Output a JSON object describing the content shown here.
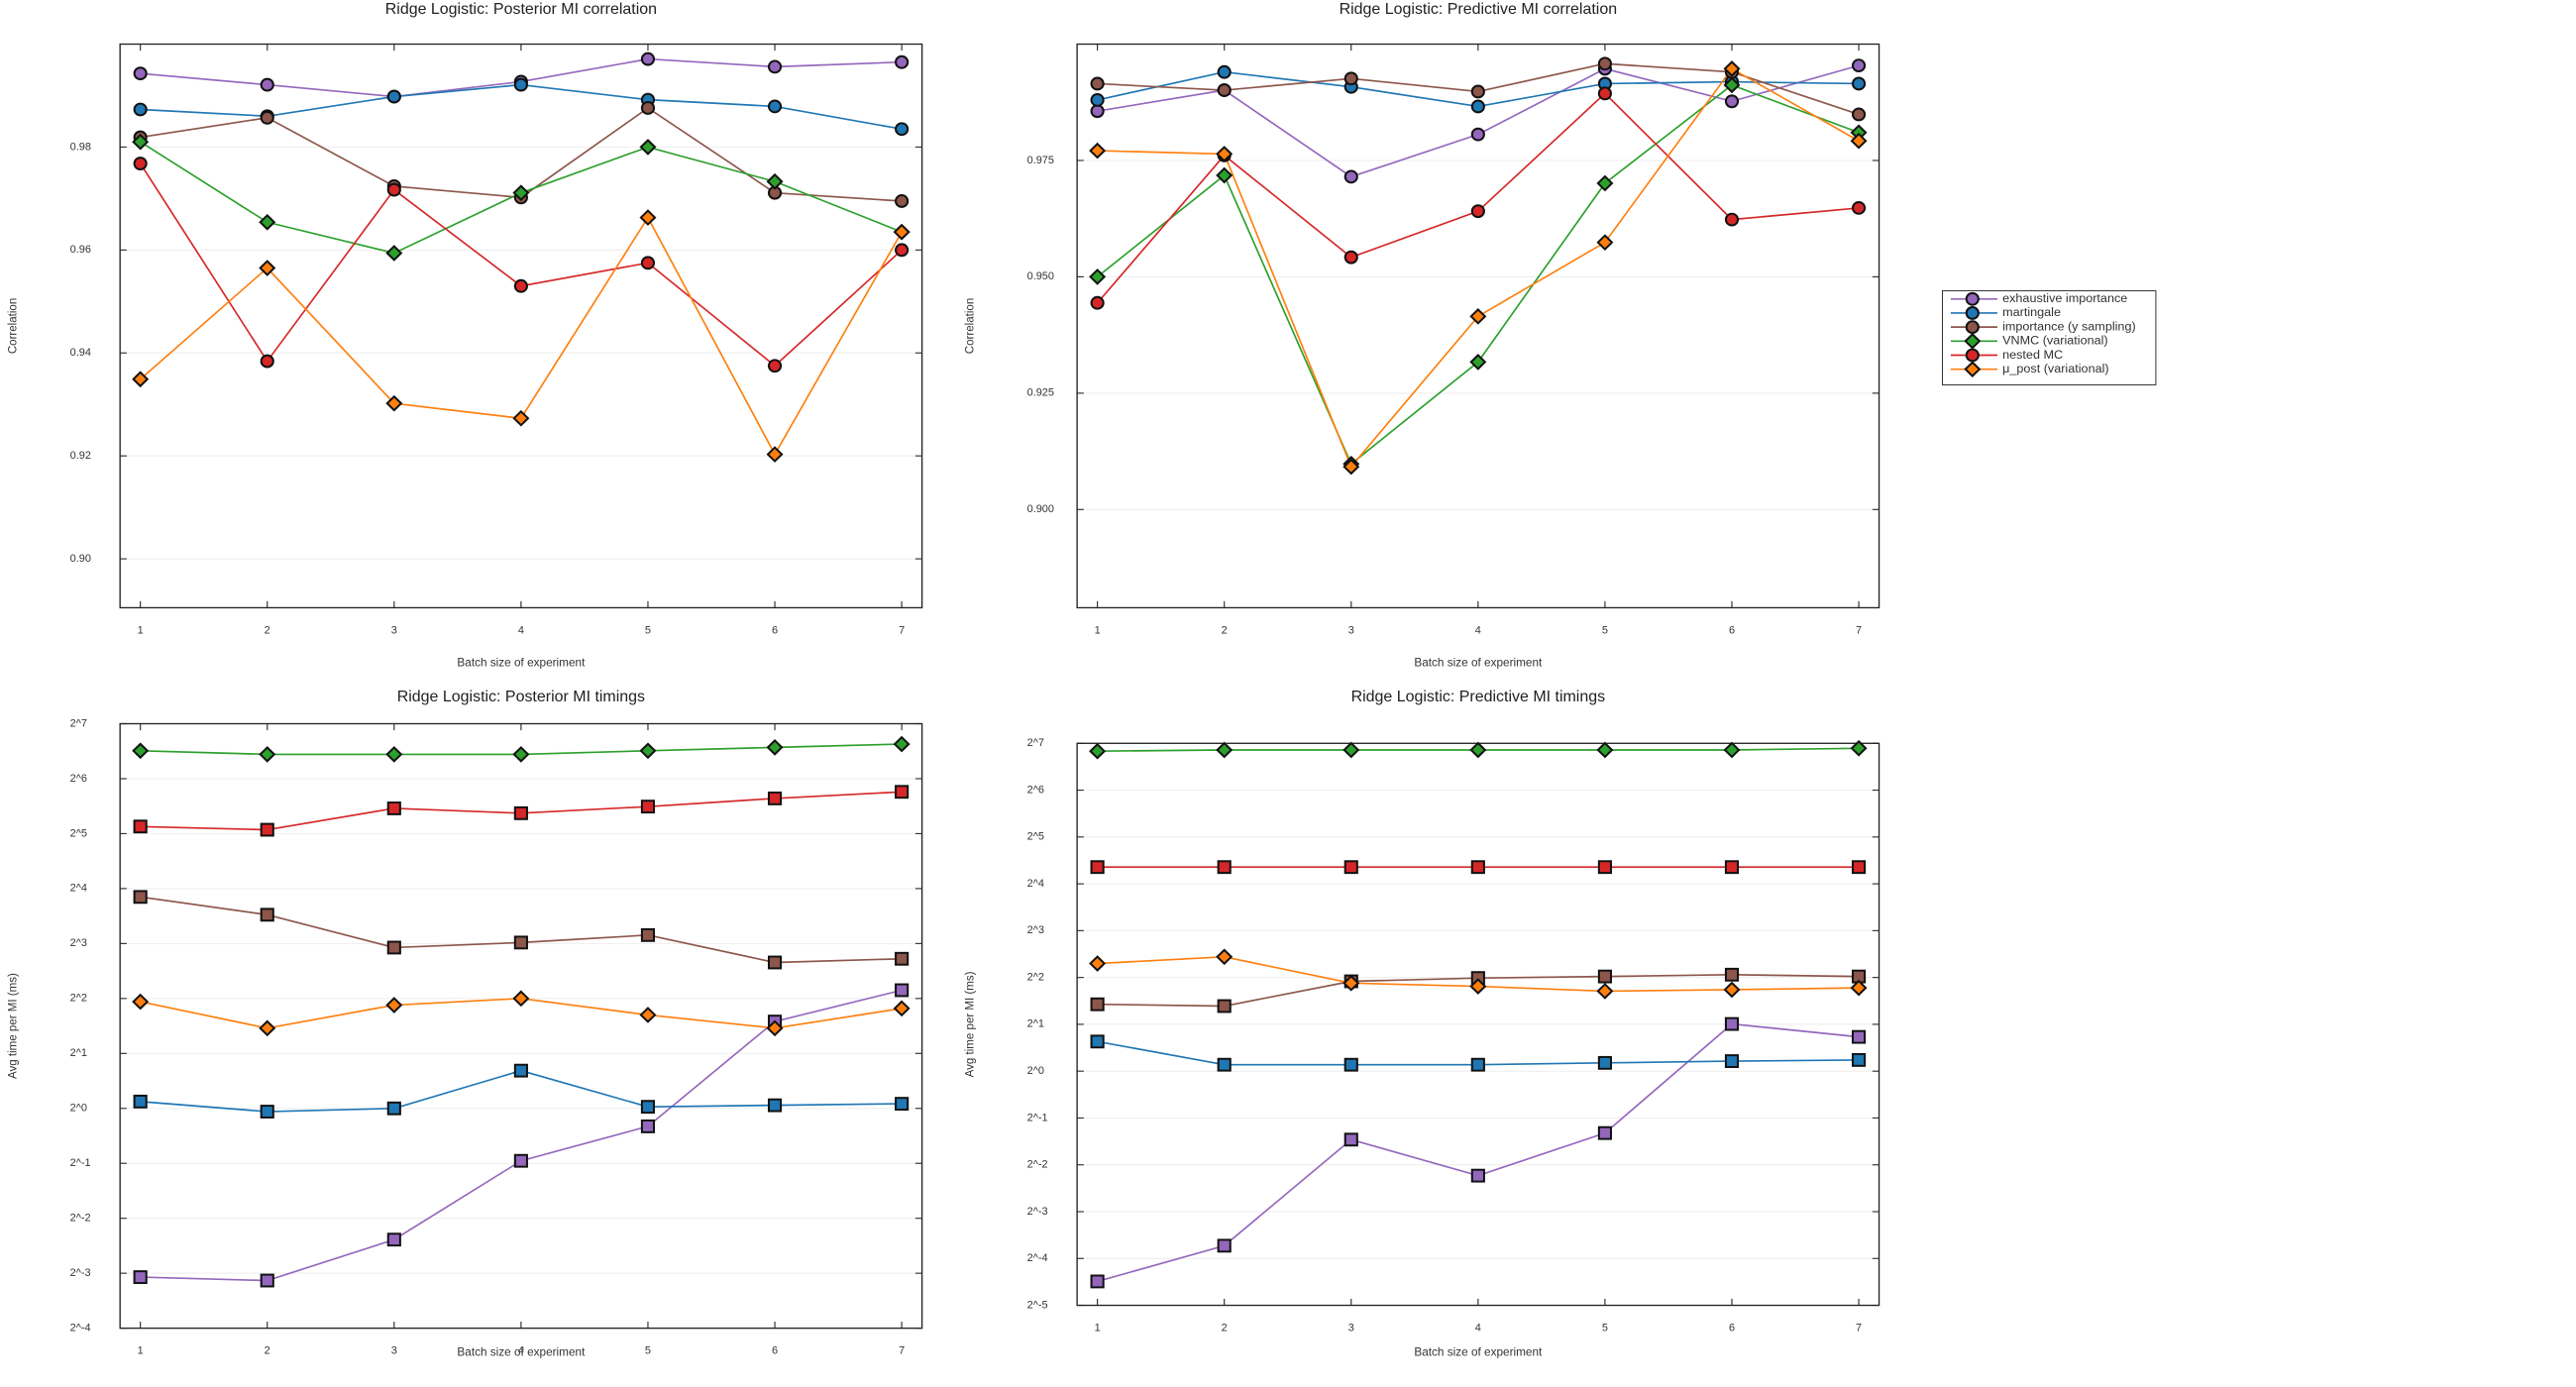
{
  "chart_data": [
    {
      "type": "line",
      "title": "Ridge Logistic: Posterior MI correlation",
      "xlabel": "Batch size of experiment",
      "ylabel": "Correlation",
      "x": [
        1,
        2,
        3,
        4,
        5,
        6,
        7
      ],
      "xlim": [
        0.84,
        7.16
      ],
      "xticks": [
        1,
        2,
        3,
        4,
        5,
        6,
        7
      ],
      "ylim": [
        0.8905,
        1.0
      ],
      "yticks": [
        {
          "value": 0.9,
          "label": "0.90"
        },
        0.92,
        0.94,
        0.96,
        0.98
      ],
      "grid": true,
      "series": [
        {
          "name": "exhaustive importance",
          "color": "#9467bd",
          "marker": "circle",
          "values": [
            0.9943,
            0.9921,
            0.9898,
            0.9927,
            0.9971,
            0.9956,
            0.9965
          ]
        },
        {
          "name": "martingale",
          "color": "#1f77b4",
          "marker": "circle",
          "values": [
            0.9873,
            0.986,
            0.9898,
            0.9921,
            0.9892,
            0.9879,
            0.9835
          ]
        },
        {
          "name": "importance (y sampling)",
          "color": "#8c564b",
          "marker": "circle",
          "values": [
            0.9819,
            0.9857,
            0.9724,
            0.9702,
            0.9876,
            0.9711,
            0.9695
          ]
        },
        {
          "name": "VNMC (variational)",
          "color": "#2ca02c",
          "marker": "diamond",
          "values": [
            0.981,
            0.9654,
            0.9594,
            0.9711,
            0.98,
            0.9733,
            0.9635
          ]
        },
        {
          "name": "nested MC",
          "color": "#d62728",
          "marker": "circle",
          "values": [
            0.9768,
            0.9384,
            0.9717,
            0.953,
            0.9575,
            0.9375,
            0.96
          ]
        },
        {
          "name": "μ_post (variational)",
          "color": "#ff7f0e",
          "marker": "diamond",
          "values": [
            0.9349,
            0.9565,
            0.9302,
            0.9273,
            0.9663,
            0.9203,
            0.9635
          ]
        }
      ]
    },
    {
      "type": "line",
      "title": "Ridge Logistic: Predictive MI correlation",
      "xlabel": "Batch size of experiment",
      "ylabel": "Correlation",
      "x": [
        1,
        2,
        3,
        4,
        5,
        6,
        7
      ],
      "xlim": [
        0.84,
        7.16
      ],
      "xticks": [
        1,
        2,
        3,
        4,
        5,
        6,
        7
      ],
      "ylim": [
        0.8789,
        1.0
      ],
      "yticks": [
        {
          "value": 0.9,
          "label": "0.900"
        },
        {
          "value": 0.925,
          "label": "0.925"
        },
        {
          "value": 0.95,
          "label": "0.950"
        },
        {
          "value": 0.975,
          "label": "0.975"
        }
      ],
      "grid": true,
      "legend": "outside right",
      "series": [
        {
          "name": "exhaustive importance",
          "color": "#9467bd",
          "marker": "circle",
          "values": [
            0.9856,
            0.9901,
            0.9715,
            0.9806,
            0.9947,
            0.9877,
            0.9954
          ]
        },
        {
          "name": "martingale",
          "color": "#1f77b4",
          "marker": "circle",
          "values": [
            0.988,
            0.994,
            0.9908,
            0.9866,
            0.9915,
            0.9919,
            0.9915
          ]
        },
        {
          "name": "importance (y sampling)",
          "color": "#8c564b",
          "marker": "circle",
          "values": [
            0.9915,
            0.9901,
            0.9926,
            0.9898,
            0.9958,
            0.994,
            0.9849
          ]
        },
        {
          "name": "VNMC (variational)",
          "color": "#2ca02c",
          "marker": "diamond",
          "values": [
            0.95,
            0.9718,
            0.9098,
            0.9317,
            0.9701,
            0.9912,
            0.981
          ]
        },
        {
          "name": "nested MC",
          "color": "#d62728",
          "marker": "circle",
          "values": [
            0.9444,
            0.9761,
            0.9542,
            0.9641,
            0.9894,
            0.9623,
            0.9648
          ]
        },
        {
          "name": "μ_post (variational)",
          "color": "#ff7f0e",
          "marker": "diamond",
          "values": [
            0.9771,
            0.9764,
            0.9092,
            0.9415,
            0.9574,
            0.9947,
            0.9792
          ]
        }
      ]
    },
    {
      "type": "line",
      "title": "Ridge Logistic: Posterior MI timings",
      "xlabel": "Batch size of experiment",
      "ylabel": "Avg time per MI (ms)",
      "x": [
        1,
        2,
        3,
        4,
        5,
        6,
        7
      ],
      "xlim": [
        0.84,
        7.16
      ],
      "xticks": [
        1,
        2,
        3,
        4,
        5,
        6,
        7
      ],
      "log_scale_y": 2,
      "ylim": [
        0.0625,
        128
      ],
      "yticks": [
        {
          "value": 128,
          "label": "2^7"
        },
        {
          "value": 64,
          "label": "2^6"
        },
        {
          "value": 32,
          "label": "2^5"
        },
        {
          "value": 16,
          "label": "2^4"
        },
        {
          "value": 8,
          "label": "2^3"
        },
        {
          "value": 4,
          "label": "2^2"
        },
        {
          "value": 2,
          "label": "2^1"
        },
        {
          "value": 1,
          "label": "2^0"
        },
        {
          "value": 0.5,
          "label": "2^-1"
        },
        {
          "value": 0.25,
          "label": "2^-2"
        },
        {
          "value": 0.125,
          "label": "2^-3"
        },
        {
          "value": 0.0625,
          "label": "2^-4"
        }
      ],
      "grid": true,
      "series": [
        {
          "name": "exhaustive importance",
          "color": "#9467bd",
          "marker": "square",
          "values": [
            0.119,
            0.114,
            0.191,
            0.516,
            0.797,
            2.99,
            4.44
          ]
        },
        {
          "name": "martingale",
          "color": "#1f77b4",
          "marker": "square",
          "values": [
            1.09,
            0.96,
            1.0,
            1.61,
            1.02,
            1.04,
            1.06
          ]
        },
        {
          "name": "importance (y sampling)",
          "color": "#8c564b",
          "marker": "square",
          "values": [
            14.4,
            11.5,
            7.6,
            8.1,
            8.9,
            6.3,
            6.6
          ]
        },
        {
          "name": "VNMC (variational)",
          "color": "#2ca02c",
          "marker": "diamond",
          "values": [
            91,
            87,
            87,
            87,
            91,
            95,
            99
          ]
        },
        {
          "name": "nested MC",
          "color": "#d62728",
          "marker": "square",
          "values": [
            35,
            33.6,
            44,
            41.4,
            45,
            49.9,
            54.2
          ]
        },
        {
          "name": "μ_post (variational)",
          "color": "#ff7f0e",
          "marker": "diamond",
          "values": [
            3.84,
            2.75,
            3.68,
            4.0,
            3.25,
            2.75,
            3.53
          ]
        }
      ]
    },
    {
      "type": "line",
      "title": "Ridge Logistic: Predictive MI timings",
      "xlabel": "Batch size of experiment",
      "ylabel": "Avg time per MI (ms)",
      "x": [
        1,
        2,
        3,
        4,
        5,
        6,
        7
      ],
      "xlim": [
        0.84,
        7.16
      ],
      "xticks": [
        1,
        2,
        3,
        4,
        5,
        6,
        7
      ],
      "log_scale_y": 2,
      "ylim": [
        0.03125,
        128
      ],
      "yticks": [
        {
          "value": 128,
          "label": "2^7"
        },
        {
          "value": 64,
          "label": "2^6"
        },
        {
          "value": 32,
          "label": "2^5"
        },
        {
          "value": 16,
          "label": "2^4"
        },
        {
          "value": 8,
          "label": "2^3"
        },
        {
          "value": 4,
          "label": "2^2"
        },
        {
          "value": 2,
          "label": "2^1"
        },
        {
          "value": 1,
          "label": "2^0"
        },
        {
          "value": 0.5,
          "label": "2^-1"
        },
        {
          "value": 0.25,
          "label": "2^-2"
        },
        {
          "value": 0.125,
          "label": "2^-3"
        },
        {
          "value": 0.0625,
          "label": "2^-4"
        },
        {
          "value": 0.03125,
          "label": "2^-5"
        }
      ],
      "grid": true,
      "series": [
        {
          "name": "exhaustive importance",
          "color": "#9467bd",
          "marker": "square",
          "values": [
            0.0445,
            0.0755,
            0.363,
            0.213,
            0.4,
            2.01,
            1.66
          ]
        },
        {
          "name": "martingale",
          "color": "#1f77b4",
          "marker": "square",
          "values": [
            1.55,
            1.1,
            1.1,
            1.1,
            1.13,
            1.16,
            1.18
          ]
        },
        {
          "name": "importance (y sampling)",
          "color": "#8c564b",
          "marker": "square",
          "values": [
            2.69,
            2.62,
            3.78,
            3.97,
            4.06,
            4.17,
            4.06
          ]
        },
        {
          "name": "VNMC (variational)",
          "color": "#2ca02c",
          "marker": "diamond",
          "values": [
            114,
            116,
            116,
            116,
            116,
            116,
            119
          ]
        },
        {
          "name": "nested MC",
          "color": "#d62728",
          "marker": "square",
          "values": [
            20.5,
            20.5,
            20.5,
            20.5,
            20.5,
            20.5,
            20.5
          ]
        },
        {
          "name": "μ_post (variational)",
          "color": "#ff7f0e",
          "marker": "diamond",
          "values": [
            4.92,
            5.43,
            3.68,
            3.51,
            3.27,
            3.34,
            3.43
          ]
        }
      ]
    }
  ]
}
